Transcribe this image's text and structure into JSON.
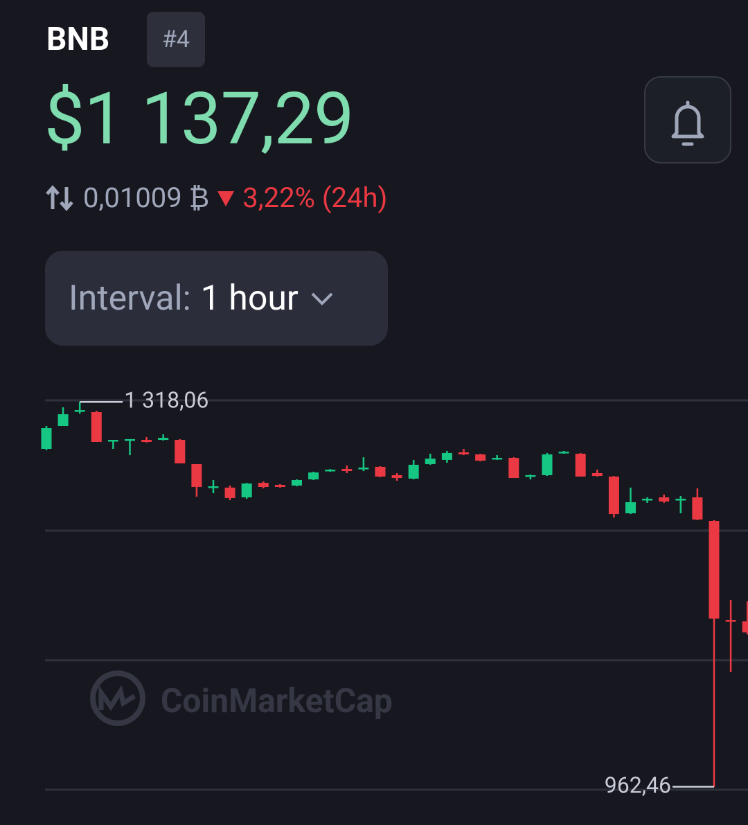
{
  "header": {
    "symbol": "BNB",
    "rank": "#4",
    "price": "$1 137,29",
    "btc_price": "0,01009 ₿",
    "change": "3,22%",
    "change_period": "(24h)"
  },
  "interval": {
    "label": "Interval:",
    "value": "1 hour"
  },
  "watermark": "CoinMarketCap",
  "chart_data": {
    "type": "candlestick",
    "open": [
      1274.7,
      1295.8,
      1309.3,
      1308.6,
      1281.7,
      1282.4,
      1283.0,
      1283.0,
      1283.0,
      1260.6,
      1238.9,
      1238.9,
      1229.9,
      1243.3,
      1241.4,
      1240.8,
      1246.5,
      1254.2,
      1256.1,
      1256.1,
      1258.1,
      1250.4,
      1247.2,
      1260.6,
      1264.5,
      1271.5,
      1269.6,
      1265.1,
      1266.4,
      1249.1,
      1250.4,
      1270.9,
      1270.2,
      1252.3,
      1249.1,
      1215.2,
      1227.3,
      1229.9,
      1227.3,
      1229.9,
      1208.1,
      1116.6,
      1115.3
    ],
    "high": [
      1295.8,
      1313.1,
      1318.06,
      1309.9,
      1283.0,
      1283.7,
      1285.6,
      1288.1,
      1283.7,
      1260.6,
      1245.9,
      1240.8,
      1243.3,
      1244.6,
      1242.1,
      1246.5,
      1253.6,
      1256.1,
      1259.3,
      1267.0,
      1258.7,
      1252.3,
      1264.5,
      1270.2,
      1272.8,
      1274.7,
      1270.2,
      1268.9,
      1267.0,
      1251.0,
      1270.9,
      1272.8,
      1270.9,
      1255.5,
      1249.7,
      1238.9,
      1229.9,
      1232.5,
      1231.2,
      1238.2,
      1208.8,
      1135.2,
      1133.9
    ],
    "low": [
      1273.4,
      1295.8,
      1307.3,
      1281.1,
      1274.7,
      1268.9,
      1280.5,
      1282.4,
      1261.3,
      1230.5,
      1233.7,
      1227.3,
      1228.6,
      1238.2,
      1238.9,
      1240.1,
      1245.9,
      1253.6,
      1252.3,
      1254.2,
      1248.5,
      1245.3,
      1246.5,
      1260.0,
      1261.9,
      1268.9,
      1263.2,
      1264.5,
      1247.8,
      1246.5,
      1249.7,
      1270.2,
      1249.1,
      1249.1,
      1211.3,
      1214.5,
      1224.8,
      1224.8,
      1215.2,
      1208.8,
      962.46,
      1068.6,
      1103.2
    ],
    "close": [
      1293.9,
      1306.7,
      1310.5,
      1281.1,
      1283.0,
      1283.7,
      1281.1,
      1284.9,
      1261.3,
      1239.5,
      1240.1,
      1229.3,
      1242.7,
      1239.5,
      1239.5,
      1245.9,
      1252.9,
      1255.5,
      1254.2,
      1257.4,
      1249.1,
      1247.8,
      1260.0,
      1265.7,
      1270.9,
      1269.6,
      1263.8,
      1266.4,
      1247.8,
      1250.4,
      1269.6,
      1272.1,
      1249.1,
      1249.7,
      1214.5,
      1225.4,
      1228.6,
      1226.1,
      1228.6,
      1209.4,
      1117.9,
      1115.3,
      1105.1
    ],
    "ylim": [
      959.8,
      1319.5
    ],
    "up_color": "#16c784",
    "down_color": "#ea3943",
    "annotations": [
      {
        "value": 1318.06,
        "label": "1 318,06"
      },
      {
        "value": 962.46,
        "label": "962,46"
      }
    ]
  }
}
